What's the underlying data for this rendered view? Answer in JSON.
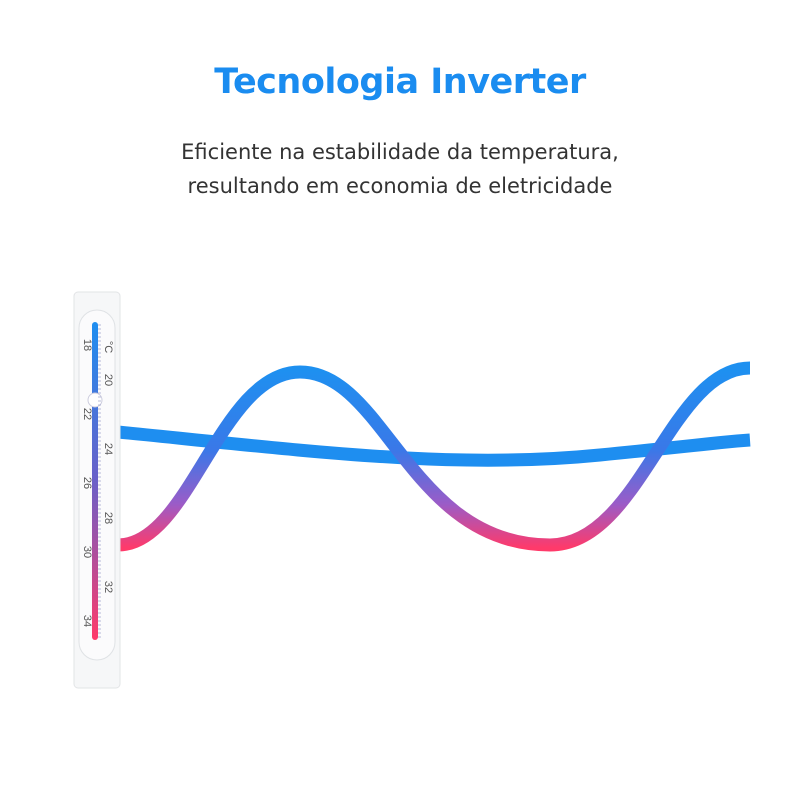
{
  "header": {
    "title": "Tecnologia Inverter",
    "subtitle_line1": "Eficiente na estabilidade da temperatura,",
    "subtitle_line2": "resultando em economia de eletricidade"
  },
  "thermometer": {
    "unit": "°C",
    "left_labels": [
      "18",
      "22",
      "26",
      "30",
      "34"
    ],
    "right_labels": [
      "20",
      "24",
      "28",
      "32"
    ]
  },
  "colors": {
    "accent": "#1a8cf0",
    "cool": "#1e90f0",
    "warm": "#ff3a6a"
  }
}
